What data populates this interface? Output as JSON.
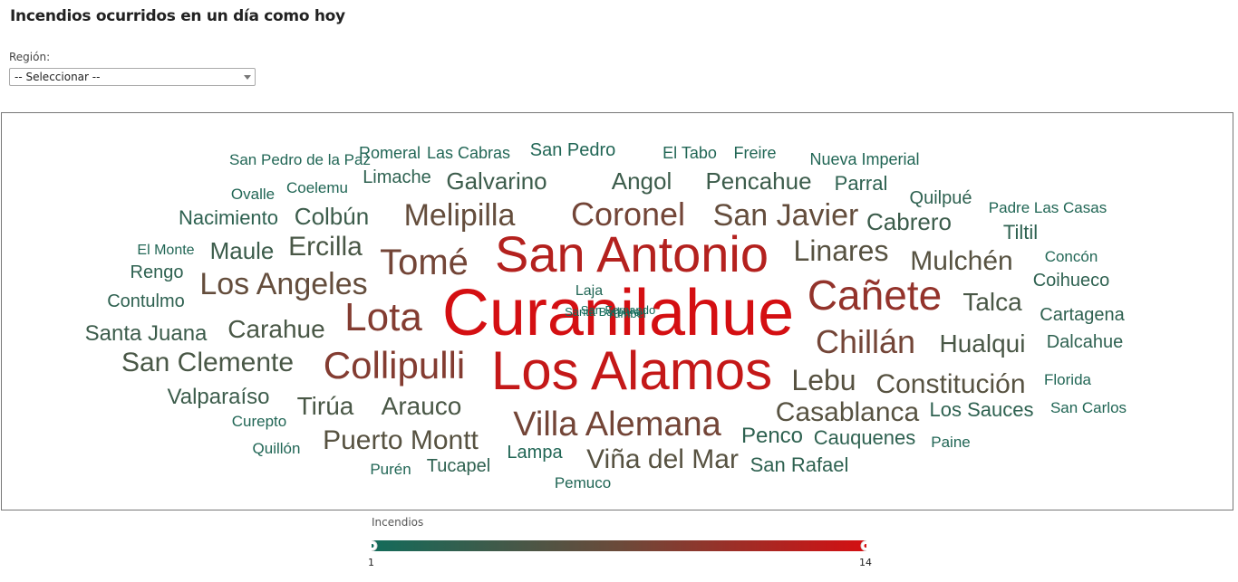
{
  "page": {
    "title": "Incendios ocurridos en un día como hoy"
  },
  "filter": {
    "label": "Región:",
    "selected": "-- Seleccionar --"
  },
  "colors": {
    "low": "#136b5a",
    "mid": "#6b4a3a",
    "high": "#d40f12"
  },
  "chart_data": {
    "type": "wordcloud",
    "legend": {
      "title": "Incendios",
      "min": "1",
      "max": "14"
    },
    "words": [
      {
        "text": "Curanilahue",
        "value": 14
      },
      {
        "text": "Los Alamos",
        "value": 13
      },
      {
        "text": "San Antonio",
        "value": 12
      },
      {
        "text": "Cañete",
        "value": 10
      },
      {
        "text": "Lota",
        "value": 9
      },
      {
        "text": "Collipulli",
        "value": 9
      },
      {
        "text": "Villa Alemana",
        "value": 8
      },
      {
        "text": "Tomé",
        "value": 8
      },
      {
        "text": "Coronel",
        "value": 8
      },
      {
        "text": "Chillán",
        "value": 8
      },
      {
        "text": "San Javier",
        "value": 7
      },
      {
        "text": "Melipilla",
        "value": 7
      },
      {
        "text": "Los Angeles",
        "value": 7
      },
      {
        "text": "Puerto Montt",
        "value": 6
      },
      {
        "text": "Viña del Mar",
        "value": 6
      },
      {
        "text": "Linares",
        "value": 6
      },
      {
        "text": "Constitución",
        "value": 6
      },
      {
        "text": "Casablanca",
        "value": 6
      },
      {
        "text": "Lebu",
        "value": 6
      },
      {
        "text": "Mulchén",
        "value": 6
      },
      {
        "text": "San Clemente",
        "value": 5
      },
      {
        "text": "Ercilla",
        "value": 5
      },
      {
        "text": "Carahue",
        "value": 5
      },
      {
        "text": "Hualqui",
        "value": 5
      },
      {
        "text": "Talca",
        "value": 5
      },
      {
        "text": "Arauco",
        "value": 5
      },
      {
        "text": "Tirúa",
        "value": 5
      },
      {
        "text": "Angol",
        "value": 4
      },
      {
        "text": "Pencahue",
        "value": 4
      },
      {
        "text": "Galvarino",
        "value": 4
      },
      {
        "text": "Colbún",
        "value": 4
      },
      {
        "text": "Maule",
        "value": 4
      },
      {
        "text": "Cabrero",
        "value": 4
      },
      {
        "text": "Valparaíso",
        "value": 4
      },
      {
        "text": "Santa Juana",
        "value": 4
      },
      {
        "text": "Tucapel",
        "value": 3
      },
      {
        "text": "Penco",
        "value": 3
      },
      {
        "text": "Cauquenes",
        "value": 3
      },
      {
        "text": "San Rafael",
        "value": 3
      },
      {
        "text": "Los Sauces",
        "value": 3
      },
      {
        "text": "Nacimiento",
        "value": 3
      },
      {
        "text": "Quilpué",
        "value": 3
      },
      {
        "text": "Parral",
        "value": 3
      },
      {
        "text": "Cartagena",
        "value": 3
      },
      {
        "text": "Dalcahue",
        "value": 3
      },
      {
        "text": "Coihueco",
        "value": 3
      },
      {
        "text": "Contulmo",
        "value": 3
      },
      {
        "text": "Tiltil",
        "value": 3
      },
      {
        "text": "Rengo",
        "value": 3
      },
      {
        "text": "Limache",
        "value": 3
      },
      {
        "text": "Lampa",
        "value": 2
      },
      {
        "text": "San Pedro",
        "value": 2
      },
      {
        "text": "Nueva Imperial",
        "value": 2
      },
      {
        "text": "Padre Las Casas",
        "value": 2
      },
      {
        "text": "Concón",
        "value": 2
      },
      {
        "text": "Florida",
        "value": 2
      },
      {
        "text": "San Carlos",
        "value": 2
      },
      {
        "text": "Paine",
        "value": 2
      },
      {
        "text": "Pemuco",
        "value": 2
      },
      {
        "text": "Quillón",
        "value": 2
      },
      {
        "text": "Purén",
        "value": 2
      },
      {
        "text": "Curepto",
        "value": 2
      },
      {
        "text": "El Monte",
        "value": 2
      },
      {
        "text": "Ovalle",
        "value": 2
      },
      {
        "text": "Coelemu",
        "value": 2
      },
      {
        "text": "San Pedro de la Paz",
        "value": 2
      },
      {
        "text": "Romeral",
        "value": 2
      },
      {
        "text": "Las Cabras",
        "value": 2
      },
      {
        "text": "El Tabo",
        "value": 2
      },
      {
        "text": "Freire",
        "value": 2
      },
      {
        "text": "Laja",
        "value": 2
      },
      {
        "text": "Santa Bárbara",
        "value": 1
      },
      {
        "text": "San Fernando",
        "value": 1
      },
      {
        "text": "Yumbel",
        "value": 1
      }
    ]
  }
}
